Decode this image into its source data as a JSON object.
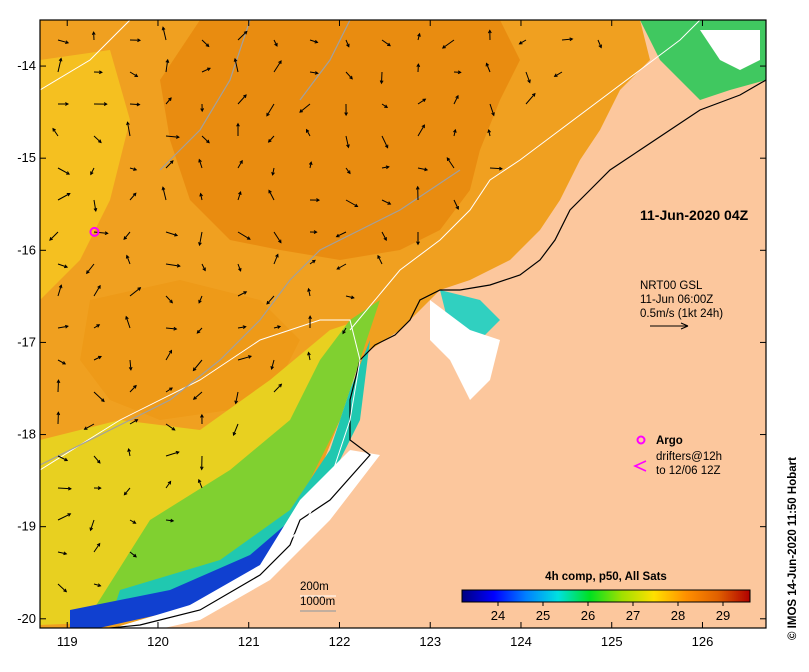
{
  "map": {
    "lon_range": [
      118.7,
      126.7
    ],
    "lat_range": [
      -20.1,
      -13.5
    ],
    "lon_ticks": [
      "119",
      "120",
      "121",
      "122",
      "123",
      "124",
      "125",
      "126"
    ],
    "lat_ticks": [
      "-14",
      "-15",
      "-16",
      "-17",
      "-18",
      "-19",
      "-20"
    ],
    "land_color": "#fcc79d",
    "border_color": "#000000"
  },
  "labels": {
    "date": "11-Jun-2020 04Z",
    "model_line1": "NRT00 GSL",
    "model_line2": "11-Jun 06:00Z",
    "model_line3": "0.5m/s (1kt 24h)",
    "argo": "Argo",
    "drifters_line1": "drifters@12h",
    "drifters_line2": "to 12/06 12Z",
    "depth_200": "200m",
    "depth_1000": "1000m",
    "credit": "© IMOS 14-Jun-2020 11:50 Hobart"
  },
  "colorbar": {
    "title": "4h comp, p50, All Sats",
    "ticks": [
      "24",
      "25",
      "26",
      "27",
      "28",
      "29"
    ],
    "range": [
      23.2,
      29.6
    ],
    "colors": [
      "#00007f",
      "#0000ff",
      "#0080ff",
      "#00e0e0",
      "#00e020",
      "#a0e000",
      "#ffe000",
      "#ff9000",
      "#e06000",
      "#b00000"
    ]
  },
  "argo": {
    "lon": 119.3,
    "lat": -15.8,
    "color": "#ff00ff"
  }
}
